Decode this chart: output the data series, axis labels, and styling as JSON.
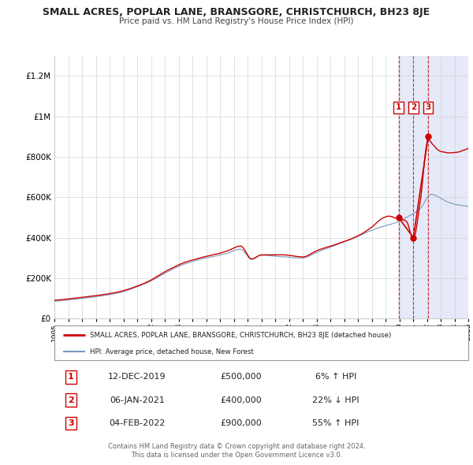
{
  "title": "SMALL ACRES, POPLAR LANE, BRANSGORE, CHRISTCHURCH, BH23 8JE",
  "subtitle": "Price paid vs. HM Land Registry's House Price Index (HPI)",
  "legend_line1": "SMALL ACRES, POPLAR LANE, BRANSGORE, CHRISTCHURCH, BH23 8JE (detached house)",
  "legend_line2": "HPI: Average price, detached house, New Forest",
  "footer1": "Contains HM Land Registry data © Crown copyright and database right 2024.",
  "footer2": "This data is licensed under the Open Government Licence v3.0.",
  "red_color": "#cc0000",
  "blue_color": "#7799bb",
  "background_color": "#ffffff",
  "plot_bg_color": "#ffffff",
  "highlight_bg": "#e6eaf8",
  "grid_color": "#cccccc",
  "ylim": [
    0,
    1300000
  ],
  "yticks": [
    0,
    200000,
    400000,
    600000,
    800000,
    1000000,
    1200000
  ],
  "ytick_labels": [
    "£0",
    "£200K",
    "£400K",
    "£600K",
    "£800K",
    "£1M",
    "£1.2M"
  ],
  "xstart": 1995,
  "xend": 2025,
  "transactions": [
    {
      "num": 1,
      "date": "12-DEC-2019",
      "price": 500000,
      "pct": "6%",
      "dir": "↑",
      "x": 2019.95
    },
    {
      "num": 2,
      "date": "06-JAN-2021",
      "price": 400000,
      "pct": "22%",
      "dir": "↓",
      "x": 2021.02
    },
    {
      "num": 3,
      "date": "04-FEB-2022",
      "price": 900000,
      "pct": "55%",
      "dir": "↑",
      "x": 2022.09
    }
  ]
}
